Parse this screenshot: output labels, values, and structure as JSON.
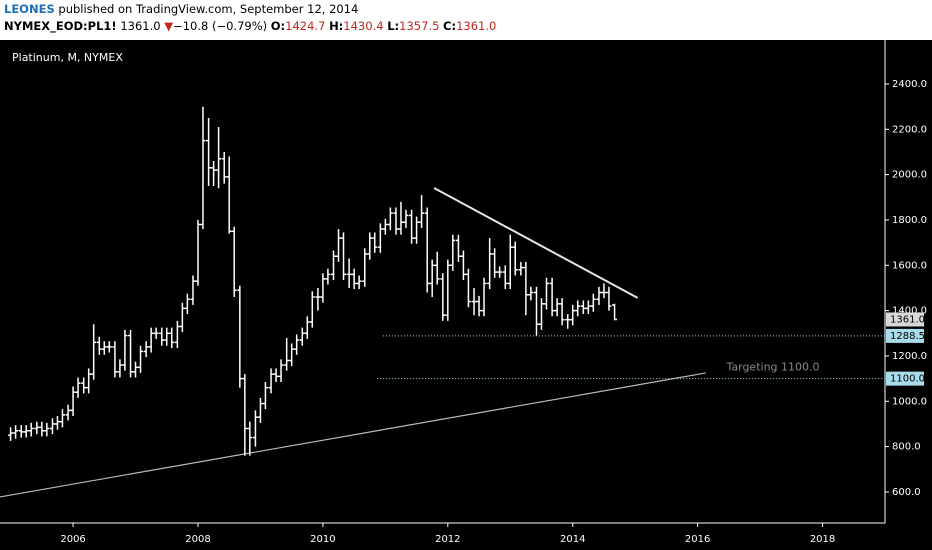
{
  "header": {
    "author": "LEONES",
    "published": "published on TradingView.com, September 12, 2014",
    "symbol": "NYMEX_EOD:PL1!",
    "last": "1361.0",
    "arrow": "▼",
    "change": "−10.8 (−0.79%)",
    "o_label": "O:",
    "o": "1424.7",
    "h_label": "H:",
    "h": "1430.4",
    "l_label": "L:",
    "l": "1357.5",
    "c_label": "C:",
    "c": "1361.0"
  },
  "chart_data": {
    "type": "ohlc",
    "title": "Platinum, M, NYMEX",
    "color": "#ffffff",
    "background": "#000000",
    "x": [
      2005.0,
      2005.08,
      2005.17,
      2005.25,
      2005.33,
      2005.42,
      2005.5,
      2005.58,
      2005.67,
      2005.75,
      2005.83,
      2005.92,
      2006.0,
      2006.08,
      2006.17,
      2006.25,
      2006.33,
      2006.42,
      2006.5,
      2006.58,
      2006.67,
      2006.75,
      2006.83,
      2006.92,
      2007.0,
      2007.08,
      2007.17,
      2007.25,
      2007.33,
      2007.42,
      2007.5,
      2007.58,
      2007.67,
      2007.75,
      2007.83,
      2007.92,
      2008.0,
      2008.08,
      2008.17,
      2008.25,
      2008.33,
      2008.42,
      2008.5,
      2008.58,
      2008.67,
      2008.75,
      2008.83,
      2008.92,
      2009.0,
      2009.08,
      2009.17,
      2009.25,
      2009.33,
      2009.42,
      2009.5,
      2009.58,
      2009.67,
      2009.75,
      2009.83,
      2009.92,
      2010.0,
      2010.08,
      2010.17,
      2010.25,
      2010.33,
      2010.42,
      2010.5,
      2010.58,
      2010.67,
      2010.75,
      2010.83,
      2010.92,
      2011.0,
      2011.08,
      2011.17,
      2011.25,
      2011.33,
      2011.42,
      2011.5,
      2011.58,
      2011.67,
      2011.75,
      2011.83,
      2011.92,
      2012.0,
      2012.08,
      2012.17,
      2012.25,
      2012.33,
      2012.42,
      2012.5,
      2012.58,
      2012.67,
      2012.75,
      2012.83,
      2012.92,
      2013.0,
      2013.08,
      2013.17,
      2013.25,
      2013.33,
      2013.42,
      2013.5,
      2013.58,
      2013.67,
      2013.75,
      2013.83,
      2013.92,
      2014.0,
      2014.08,
      2014.17,
      2014.25,
      2014.33,
      2014.42,
      2014.5,
      2014.58,
      2014.67
    ],
    "open": [
      850,
      860,
      870,
      865,
      870,
      880,
      885,
      870,
      880,
      900,
      910,
      940,
      960,
      1040,
      1080,
      1060,
      1120,
      1260,
      1230,
      1240,
      1240,
      1130,
      1160,
      1290,
      1130,
      1150,
      1220,
      1240,
      1300,
      1300,
      1270,
      1300,
      1260,
      1330,
      1410,
      1450,
      1530,
      1780,
      2150,
      2030,
      2020,
      2070,
      1990,
      1750,
      1490,
      1100,
      880,
      840,
      930,
      990,
      1060,
      1120,
      1110,
      1160,
      1180,
      1230,
      1270,
      1300,
      1350,
      1460,
      1460,
      1540,
      1560,
      1640,
      1720,
      1560,
      1560,
      1520,
      1530,
      1650,
      1720,
      1680,
      1760,
      1780,
      1830,
      1760,
      1790,
      1820,
      1720,
      1790,
      1830,
      1520,
      1600,
      1540,
      1380,
      1600,
      1710,
      1640,
      1560,
      1440,
      1440,
      1400,
      1520,
      1650,
      1570,
      1570,
      1520,
      1680,
      1580,
      1590,
      1470,
      1480,
      1340,
      1430,
      1520,
      1400,
      1430,
      1360,
      1360,
      1400,
      1420,
      1410,
      1420,
      1450,
      1480,
      1480,
      1424.7
    ],
    "high": [
      885,
      895,
      895,
      895,
      905,
      910,
      910,
      905,
      925,
      935,
      965,
      985,
      1065,
      1105,
      1105,
      1145,
      1340,
      1285,
      1265,
      1265,
      1265,
      1185,
      1315,
      1315,
      1175,
      1245,
      1265,
      1325,
      1325,
      1325,
      1325,
      1325,
      1355,
      1435,
      1475,
      1555,
      1800,
      2300,
      2250,
      2060,
      2210,
      2100,
      2080,
      1770,
      1510,
      1120,
      910,
      960,
      1015,
      1085,
      1145,
      1145,
      1185,
      1280,
      1255,
      1295,
      1325,
      1375,
      1485,
      1500,
      1565,
      1585,
      1665,
      1760,
      1745,
      1630,
      1585,
      1555,
      1675,
      1745,
      1745,
      1785,
      1805,
      1855,
      1855,
      1880,
      1845,
      1845,
      1815,
      1910,
      1855,
      1625,
      1660,
      1565,
      1625,
      1735,
      1735,
      1665,
      1585,
      1500,
      1465,
      1545,
      1720,
      1675,
      1595,
      1600,
      1735,
      1705,
      1615,
      1615,
      1505,
      1505,
      1455,
      1545,
      1545,
      1455,
      1455,
      1385,
      1425,
      1445,
      1445,
      1445,
      1475,
      1505,
      1520,
      1505,
      1430.4
    ],
    "low": [
      825,
      835,
      840,
      840,
      845,
      855,
      845,
      845,
      855,
      875,
      885,
      915,
      935,
      1015,
      1035,
      1035,
      1095,
      1205,
      1205,
      1215,
      1105,
      1105,
      1135,
      1105,
      1105,
      1125,
      1195,
      1215,
      1275,
      1245,
      1245,
      1235,
      1235,
      1305,
      1385,
      1425,
      1510,
      1760,
      1950,
      1950,
      1940,
      1960,
      1740,
      1460,
      1060,
      760,
      760,
      800,
      905,
      965,
      1035,
      1085,
      1085,
      1135,
      1155,
      1205,
      1245,
      1275,
      1325,
      1400,
      1435,
      1515,
      1535,
      1615,
      1535,
      1500,
      1495,
      1495,
      1505,
      1625,
      1655,
      1655,
      1735,
      1755,
      1735,
      1735,
      1765,
      1695,
      1695,
      1765,
      1480,
      1460,
      1515,
      1355,
      1355,
      1575,
      1615,
      1535,
      1415,
      1380,
      1375,
      1375,
      1495,
      1545,
      1545,
      1495,
      1495,
      1555,
      1555,
      1380,
      1445,
      1290,
      1315,
      1405,
      1375,
      1375,
      1335,
      1320,
      1335,
      1375,
      1385,
      1385,
      1395,
      1425,
      1455,
      1400,
      1357.5
    ],
    "close": [
      860,
      870,
      865,
      870,
      880,
      885,
      870,
      880,
      900,
      910,
      940,
      960,
      1040,
      1080,
      1060,
      1120,
      1260,
      1230,
      1240,
      1240,
      1130,
      1160,
      1290,
      1130,
      1150,
      1220,
      1240,
      1300,
      1300,
      1270,
      1300,
      1260,
      1330,
      1410,
      1450,
      1530,
      1780,
      2150,
      2030,
      2020,
      2070,
      1990,
      1750,
      1490,
      1100,
      880,
      840,
      930,
      990,
      1060,
      1120,
      1110,
      1160,
      1180,
      1230,
      1270,
      1300,
      1350,
      1460,
      1460,
      1540,
      1560,
      1640,
      1720,
      1560,
      1560,
      1520,
      1530,
      1650,
      1720,
      1680,
      1760,
      1780,
      1830,
      1760,
      1790,
      1820,
      1720,
      1790,
      1830,
      1520,
      1600,
      1540,
      1380,
      1600,
      1710,
      1640,
      1560,
      1440,
      1440,
      1400,
      1520,
      1650,
      1570,
      1570,
      1520,
      1680,
      1580,
      1590,
      1470,
      1480,
      1340,
      1430,
      1520,
      1400,
      1430,
      1360,
      1360,
      1400,
      1420,
      1410,
      1420,
      1450,
      1480,
      1480,
      1420,
      1361
    ],
    "xlim": [
      2004.83,
      2019.0
    ],
    "ylim": [
      463,
      2594
    ],
    "xticks": [
      2006,
      2008,
      2010,
      2012,
      2014,
      2016,
      2018
    ],
    "yticks": [
      {
        "value": 600,
        "label": "600.0"
      },
      {
        "value": 800,
        "label": "800.0"
      },
      {
        "value": 1000,
        "label": "1000.0"
      },
      {
        "value": 1200,
        "label": "1200.0"
      },
      {
        "value": 1400,
        "label": "1400.0"
      },
      {
        "value": 1600,
        "label": "1600.0"
      },
      {
        "value": 1800,
        "label": "1800.0"
      },
      {
        "value": 2000,
        "label": "2000.0"
      },
      {
        "value": 2200,
        "label": "2200.0"
      },
      {
        "value": 2400,
        "label": "2400.0"
      }
    ],
    "trendlines": [
      {
        "x": [
          2011.78,
          2015.04
        ],
        "y": [
          1941,
          1456
        ],
        "color": "#e6e6e6"
      },
      {
        "x": [
          2004.83,
          2016.13
        ],
        "y": [
          578,
          1125
        ],
        "color": "#bbbbbb"
      }
    ],
    "levels": [
      {
        "value": 1288.5,
        "start": 2010.96,
        "color": "#a9dbea"
      },
      {
        "value": 1100,
        "label": "1100.0",
        "start": 2010.87,
        "color": "#a9dbea"
      }
    ],
    "annotation": "Targeting 1100.0",
    "last_price": {
      "value": 1361,
      "label": "1361.0",
      "color": "#d9d9d9"
    }
  }
}
